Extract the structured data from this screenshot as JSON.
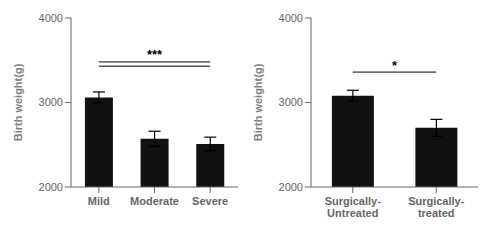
{
  "chart_data": [
    {
      "type": "bar",
      "categories": [
        "Mild",
        "Moderate",
        "Severe"
      ],
      "values": [
        3060,
        2570,
        2510
      ],
      "errors": [
        65,
        90,
        80
      ],
      "ylabel": "Birth weight(g)",
      "ylim": [
        2000,
        4000
      ],
      "yticks": [
        2000,
        3000,
        4000
      ],
      "color": "#111111",
      "annotations": [
        {
          "text": "***",
          "from": "Mild",
          "to": "Severe",
          "lines": [
            3430,
            3480
          ],
          "y": 3510
        }
      ]
    },
    {
      "type": "bar",
      "categories": [
        "Surgically-\nUntreated",
        "Surgically-\ntreated"
      ],
      "values": [
        3080,
        2700
      ],
      "errors": [
        65,
        100
      ],
      "ylabel": "Birth weight(g)",
      "ylim": [
        2000,
        4000
      ],
      "yticks": [
        2000,
        3000,
        4000
      ],
      "color": "#111111",
      "annotations": [
        {
          "text": "*",
          "from": "Surgically-\nUntreated",
          "to": "Surgically-\ntreated",
          "lines": [
            3360
          ],
          "y": 3390
        }
      ]
    }
  ]
}
